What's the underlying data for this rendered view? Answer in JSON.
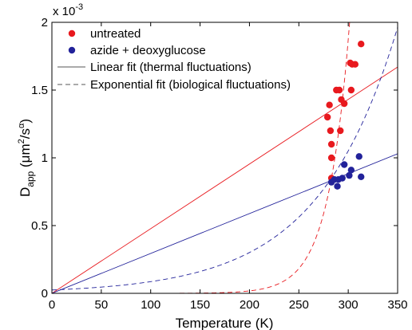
{
  "chart_data": {
    "type": "scatter",
    "xlabel": "Temperature (K)",
    "ylabel": {
      "main": "D",
      "sub": "app",
      "units_open": " (μm",
      "units_sup1": "2",
      "units_mid": "/s",
      "units_sup2": "α",
      "units_close": ")"
    },
    "y_multiplier": {
      "base": "x 10",
      "exp": "-3"
    },
    "xlim": [
      0,
      350
    ],
    "ylim": [
      0,
      2
    ],
    "xticks": [
      0,
      50,
      100,
      150,
      200,
      250,
      300,
      350
    ],
    "yticks": [
      0,
      0.5,
      1,
      1.5,
      2
    ],
    "xtick_labels": [
      "0",
      "50",
      "100",
      "150",
      "200",
      "250",
      "300",
      "350"
    ],
    "ytick_labels": [
      "0",
      "0.5",
      "1",
      "1.5",
      "2"
    ],
    "grid": false,
    "legend_position": "top-left",
    "series": [
      {
        "name": "untreated",
        "kind": "scatter",
        "color": "#e8191e",
        "points": [
          [
            279,
            1.3
          ],
          [
            281,
            1.39
          ],
          [
            282,
            1.2
          ],
          [
            283,
            1.1
          ],
          [
            283,
            1.0
          ],
          [
            283,
            0.85
          ],
          [
            288,
            1.5
          ],
          [
            291,
            1.5
          ],
          [
            292,
            1.2
          ],
          [
            293,
            1.43
          ],
          [
            296,
            1.4
          ],
          [
            302,
            1.7
          ],
          [
            303,
            1.5
          ],
          [
            304,
            1.69
          ],
          [
            307,
            1.69
          ],
          [
            313,
            1.84
          ]
        ]
      },
      {
        "name": "azide + deoxyglucose",
        "kind": "scatter",
        "color": "#22229a",
        "points": [
          [
            283,
            0.82
          ],
          [
            286,
            0.84
          ],
          [
            289,
            0.79
          ],
          [
            290,
            0.84
          ],
          [
            294,
            0.85
          ],
          [
            296,
            0.95
          ],
          [
            301,
            0.87
          ],
          [
            303,
            0.91
          ],
          [
            311,
            1.01
          ],
          [
            313,
            0.86
          ]
        ]
      },
      {
        "name": "Linear fit (thermal fluctuations)",
        "kind": "line",
        "style": "solid",
        "color": "#555555"
      },
      {
        "name": "Exponential fit (biological fluctuations)",
        "kind": "line",
        "style": "dashed",
        "color": "#555555"
      }
    ],
    "fits": [
      {
        "series": "untreated",
        "type": "linear",
        "slope": 0.004771,
        "color": "#e8191e"
      },
      {
        "series": "azide + deoxyglucose",
        "type": "linear",
        "slope": 0.002943,
        "color": "#22229a"
      },
      {
        "series": "untreated",
        "type": "exponential",
        "amplitude": 0.85,
        "t0": 283,
        "tau": 21.5,
        "color": "#e8191e"
      },
      {
        "series": "azide + deoxyglucose",
        "type": "exponential",
        "amplitude": 0.85,
        "t0": 283,
        "tau": 80,
        "color": "#22229a"
      }
    ]
  }
}
